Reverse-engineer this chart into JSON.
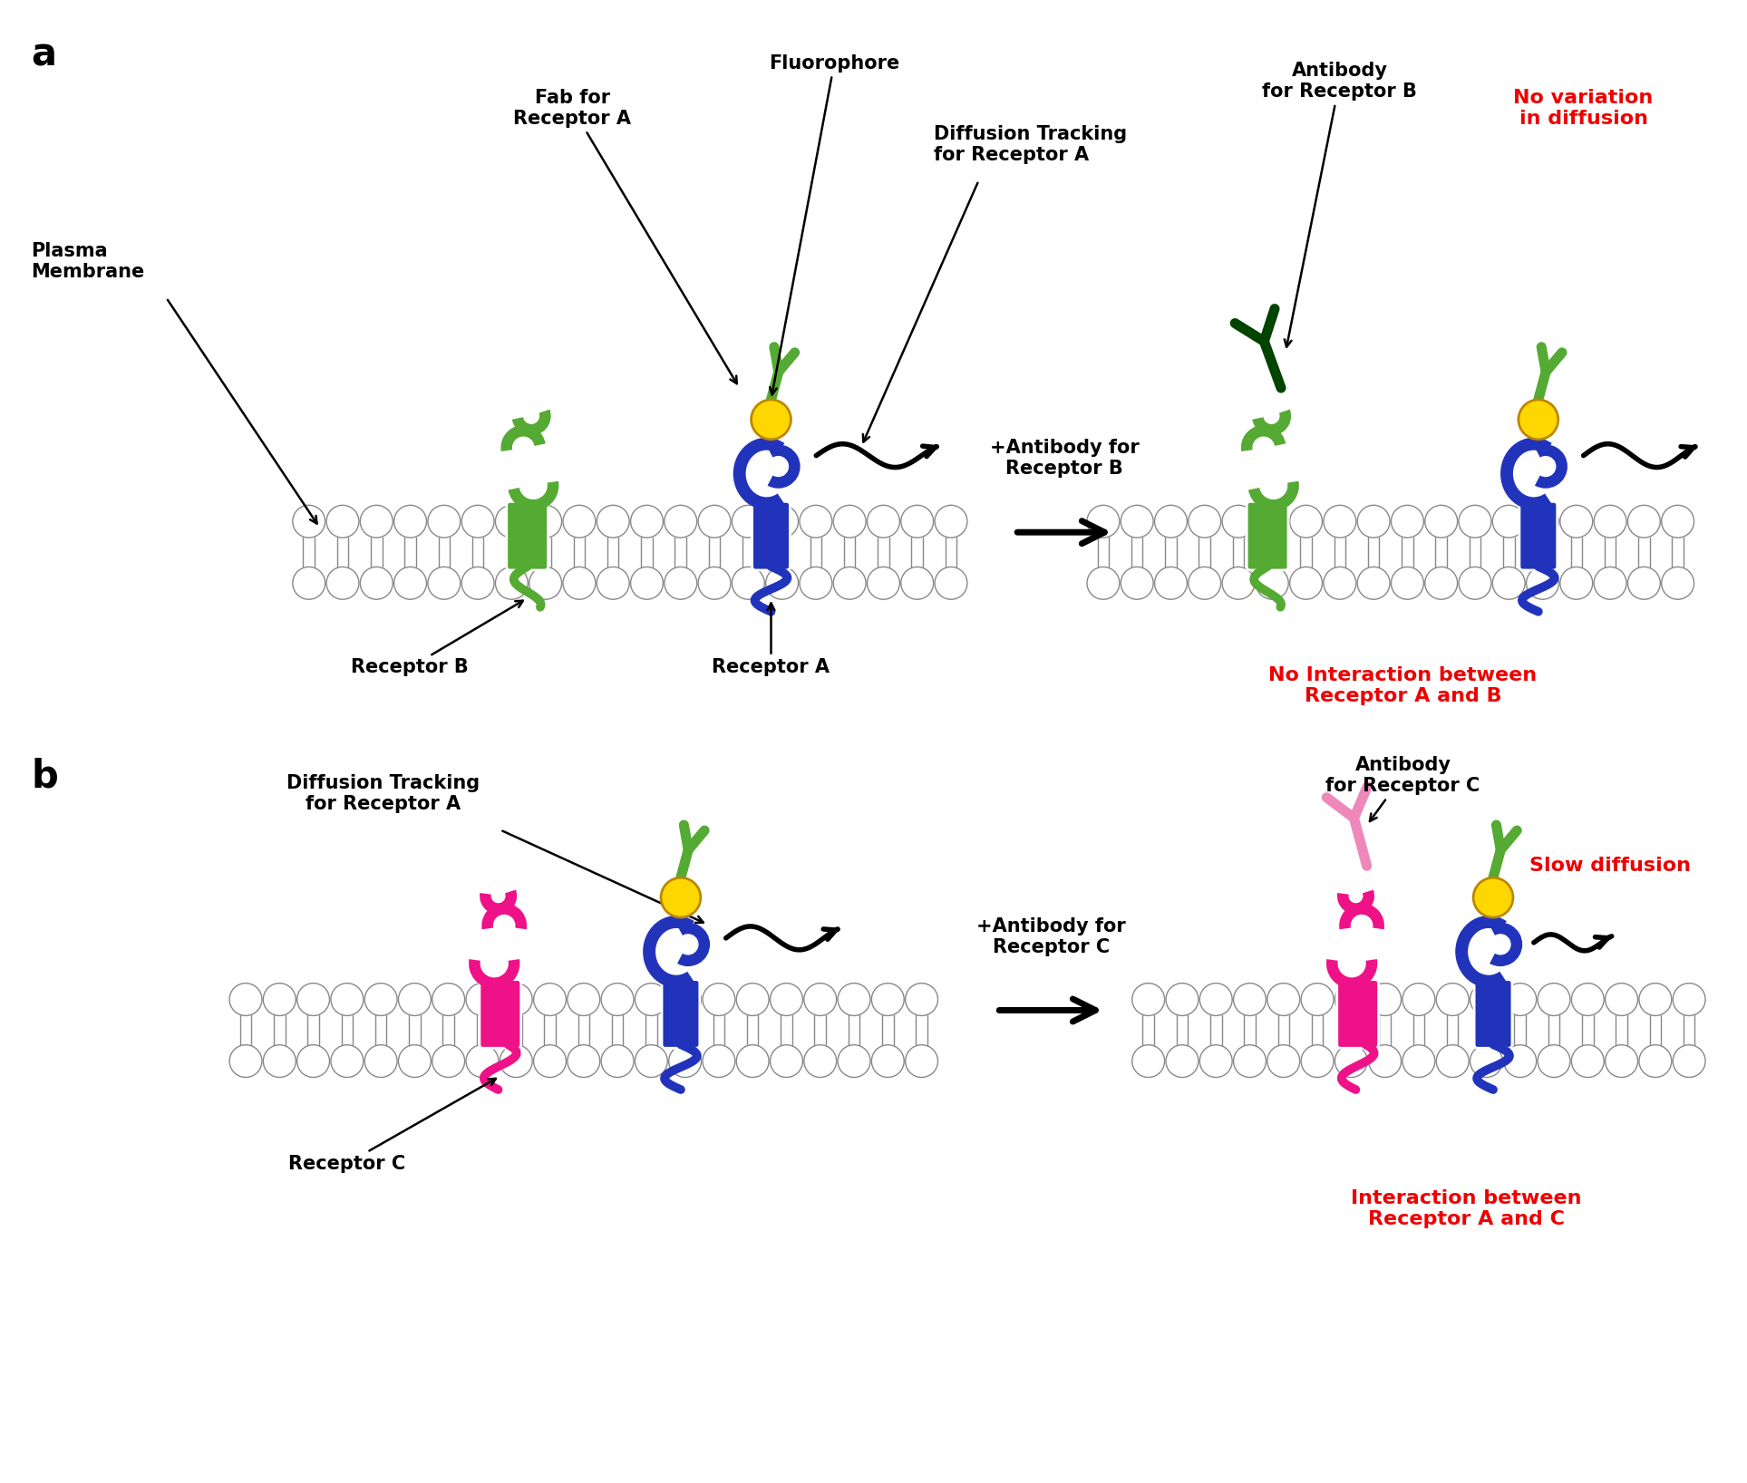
{
  "bg_color": "#ffffff",
  "fig_width": 19.27,
  "fig_height": 16.36,
  "receptor_A_color": "#2233BB",
  "receptor_B_color": "#55AA33",
  "receptor_C_color": "#EE1188",
  "receptor_C_light": "#FF66BB",
  "antibody_B_color": "#004400",
  "antibody_C_color": "#EE88BB",
  "fluorophore_color": "#FFD700",
  "fluorophore_edge": "#BB8800",
  "membrane_head_color": "#ffffff",
  "membrane_outline": "#888888",
  "red_text": "#EE0000",
  "black_text": "#000000",
  "text_fs": 15,
  "label_fs": 30,
  "panel_a": "a",
  "panel_b": "b",
  "plasma_membrane": "Plasma\nMembrane",
  "fab_label": "Fab for\nReceptor A",
  "fluorophore_label": "Fluorophore",
  "diff_track_a": "Diffusion Tracking\nfor Receptor A",
  "receptor_b_label": "Receptor B",
  "receptor_a_label": "Receptor A",
  "plus_antibody_b": "+Antibody for\nReceptor B",
  "antibody_b_label": "Antibody\nfor Receptor B",
  "no_variation": "No variation\nin diffusion",
  "no_interaction": "No Interaction between\nReceptor A and B",
  "diff_track_b": "Diffusion Tracking\nfor Receptor A",
  "receptor_c_label": "Receptor C",
  "plus_antibody_c": "+Antibody for\nReceptor C",
  "antibody_c_label": "Antibody\nfor Receptor C",
  "slow_diffusion": "Slow diffusion",
  "interaction": "Interaction between\nReceptor A and C"
}
